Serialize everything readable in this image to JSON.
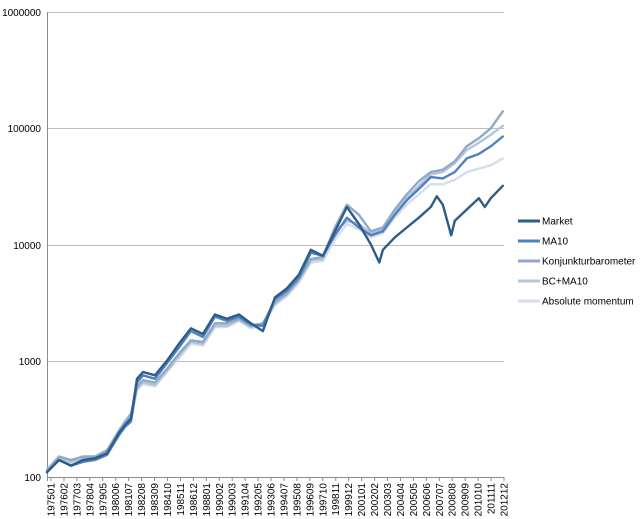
{
  "chart_data": {
    "type": "line",
    "yscale": "log",
    "ylim": [
      100,
      1000000
    ],
    "y_ticks": [
      "100",
      "1000",
      "10000",
      "100000",
      "1000000"
    ],
    "x_tick_labels": [
      "197501",
      "197602",
      "197703",
      "197804",
      "197905",
      "198006",
      "198107",
      "198208",
      "198309",
      "198410",
      "198511",
      "198612",
      "198801",
      "199002",
      "199003",
      "199104",
      "199205",
      "199306",
      "199407",
      "199508",
      "199609",
      "199710",
      "199811",
      "199912",
      "200101",
      "200202",
      "200303",
      "200404",
      "200505",
      "200606",
      "200707",
      "200808",
      "200909",
      "201010",
      "201111",
      "201212"
    ],
    "x_start_year": 1975,
    "x_end_year": 2013.1,
    "legend_position": "right",
    "grid": "horizontal",
    "series": [
      {
        "name": "Market",
        "color": "#2E5C88",
        "points": [
          [
            1975,
            110
          ],
          [
            1976,
            140
          ],
          [
            1977,
            125
          ],
          [
            1978,
            140
          ],
          [
            1979,
            145
          ],
          [
            1980,
            160
          ],
          [
            1981,
            240
          ],
          [
            1981.5,
            280
          ],
          [
            1982,
            320
          ],
          [
            1982.5,
            700
          ],
          [
            1983,
            800
          ],
          [
            1984,
            750
          ],
          [
            1985,
            1000
          ],
          [
            1986,
            1400
          ],
          [
            1987,
            1900
          ],
          [
            1988,
            1700
          ],
          [
            1989,
            2500
          ],
          [
            1990,
            2300
          ],
          [
            1991,
            2500
          ],
          [
            1992,
            2100
          ],
          [
            1993,
            1800
          ],
          [
            1994,
            3500
          ],
          [
            1995,
            4200
          ],
          [
            1996,
            5500
          ],
          [
            1997,
            9000
          ],
          [
            1998,
            8000
          ],
          [
            1999,
            13000
          ],
          [
            2000,
            21000
          ],
          [
            2001,
            15000
          ],
          [
            2002,
            10000
          ],
          [
            2002.7,
            7000
          ],
          [
            2003,
            9000
          ],
          [
            2004,
            11500
          ],
          [
            2005,
            14000
          ],
          [
            2006,
            17000
          ],
          [
            2007,
            21000
          ],
          [
            2007.5,
            26000
          ],
          [
            2008,
            22000
          ],
          [
            2008.7,
            12000
          ],
          [
            2009,
            16000
          ],
          [
            2010,
            20000
          ],
          [
            2011,
            25000
          ],
          [
            2011.5,
            21000
          ],
          [
            2012,
            25000
          ],
          [
            2013,
            32000
          ]
        ]
      },
      {
        "name": "MA10",
        "color": "#4F81BD",
        "points": [
          [
            1975,
            110
          ],
          [
            1976,
            140
          ],
          [
            1977,
            125
          ],
          [
            1978,
            135
          ],
          [
            1979,
            140
          ],
          [
            1980,
            155
          ],
          [
            1981,
            230
          ],
          [
            1981.5,
            270
          ],
          [
            1982,
            300
          ],
          [
            1982.5,
            650
          ],
          [
            1983,
            750
          ],
          [
            1984,
            700
          ],
          [
            1985,
            950
          ],
          [
            1986,
            1300
          ],
          [
            1987,
            1800
          ],
          [
            1988,
            1600
          ],
          [
            1989,
            2400
          ],
          [
            1990,
            2200
          ],
          [
            1991,
            2400
          ],
          [
            1992,
            2050
          ],
          [
            1993,
            2000
          ],
          [
            1994,
            3400
          ],
          [
            1995,
            4000
          ],
          [
            1996,
            5200
          ],
          [
            1997,
            8500
          ],
          [
            1998,
            8000
          ],
          [
            1999,
            12000
          ],
          [
            2000,
            17000
          ],
          [
            2001,
            14000
          ],
          [
            2002,
            12000
          ],
          [
            2003,
            13000
          ],
          [
            2004,
            18000
          ],
          [
            2005,
            24000
          ],
          [
            2006,
            30000
          ],
          [
            2007,
            38000
          ],
          [
            2008,
            37000
          ],
          [
            2009,
            42000
          ],
          [
            2010,
            55000
          ],
          [
            2011,
            60000
          ],
          [
            2012,
            70000
          ],
          [
            2013,
            85000
          ]
        ]
      },
      {
        "name": "Konjunkturbarometer",
        "color": "#8FA9C9",
        "points": [
          [
            1975,
            115
          ],
          [
            1976,
            150
          ],
          [
            1977,
            140
          ],
          [
            1978,
            150
          ],
          [
            1979,
            150
          ],
          [
            1980,
            170
          ],
          [
            1981,
            250
          ],
          [
            1981.5,
            300
          ],
          [
            1982,
            350
          ],
          [
            1982.5,
            600
          ],
          [
            1983,
            680
          ],
          [
            1984,
            650
          ],
          [
            1985,
            850
          ],
          [
            1986,
            1150
          ],
          [
            1987,
            1500
          ],
          [
            1988,
            1450
          ],
          [
            1989,
            2100
          ],
          [
            1990,
            2100
          ],
          [
            1991,
            2300
          ],
          [
            1992,
            2000
          ],
          [
            1993,
            2100
          ],
          [
            1994,
            3200
          ],
          [
            1995,
            3800
          ],
          [
            1996,
            5000
          ],
          [
            1997,
            7500
          ],
          [
            1998,
            7800
          ],
          [
            1999,
            14000
          ],
          [
            2000,
            22000
          ],
          [
            2001,
            18000
          ],
          [
            2002,
            13000
          ],
          [
            2003,
            14000
          ],
          [
            2004,
            20000
          ],
          [
            2005,
            27000
          ],
          [
            2006,
            35000
          ],
          [
            2007,
            42000
          ],
          [
            2008,
            44000
          ],
          [
            2009,
            52000
          ],
          [
            2010,
            70000
          ],
          [
            2011,
            82000
          ],
          [
            2012,
            100000
          ],
          [
            2013,
            140000
          ]
        ]
      },
      {
        "name": "BC+MA10",
        "color": "#B4C4DA",
        "points": [
          [
            1975,
            112
          ],
          [
            1976,
            145
          ],
          [
            1977,
            135
          ],
          [
            1978,
            145
          ],
          [
            1979,
            148
          ],
          [
            1980,
            165
          ],
          [
            1981,
            240
          ],
          [
            1981.5,
            290
          ],
          [
            1982,
            330
          ],
          [
            1982.5,
            580
          ],
          [
            1983,
            650
          ],
          [
            1984,
            620
          ],
          [
            1985,
            820
          ],
          [
            1986,
            1100
          ],
          [
            1987,
            1450
          ],
          [
            1988,
            1400
          ],
          [
            1989,
            2000
          ],
          [
            1990,
            2000
          ],
          [
            1991,
            2250
          ],
          [
            1992,
            1950
          ],
          [
            1993,
            2050
          ],
          [
            1994,
            3100
          ],
          [
            1995,
            3700
          ],
          [
            1996,
            4900
          ],
          [
            1997,
            7300
          ],
          [
            1998,
            7500
          ],
          [
            1999,
            13000
          ],
          [
            2000,
            16000
          ],
          [
            2001,
            15000
          ],
          [
            2002,
            12500
          ],
          [
            2003,
            13500
          ],
          [
            2004,
            19000
          ],
          [
            2005,
            25000
          ],
          [
            2006,
            32000
          ],
          [
            2007,
            40000
          ],
          [
            2008,
            42000
          ],
          [
            2009,
            50000
          ],
          [
            2010,
            65000
          ],
          [
            2011,
            75000
          ],
          [
            2012,
            88000
          ],
          [
            2013,
            105000
          ]
        ]
      },
      {
        "name": "Absolute momentum",
        "color": "#D5DEEA",
        "points": [
          [
            1975,
            110
          ],
          [
            1976,
            142
          ],
          [
            1977,
            130
          ],
          [
            1978,
            140
          ],
          [
            1979,
            143
          ],
          [
            1980,
            160
          ],
          [
            1981,
            225
          ],
          [
            1981.5,
            270
          ],
          [
            1982,
            310
          ],
          [
            1982.5,
            560
          ],
          [
            1983,
            630
          ],
          [
            1984,
            600
          ],
          [
            1985,
            800
          ],
          [
            1986,
            1050
          ],
          [
            1987,
            1400
          ],
          [
            1988,
            1350
          ],
          [
            1989,
            1950
          ],
          [
            1990,
            1950
          ],
          [
            1991,
            2200
          ],
          [
            1992,
            1900
          ],
          [
            1993,
            2000
          ],
          [
            1994,
            3000
          ],
          [
            1995,
            3600
          ],
          [
            1996,
            4700
          ],
          [
            1997,
            7000
          ],
          [
            1998,
            7200
          ],
          [
            1999,
            11000
          ],
          [
            2000,
            15000
          ],
          [
            2001,
            13500
          ],
          [
            2002,
            11500
          ],
          [
            2003,
            12500
          ],
          [
            2004,
            17000
          ],
          [
            2005,
            22000
          ],
          [
            2006,
            27000
          ],
          [
            2007,
            33000
          ],
          [
            2008,
            33000
          ],
          [
            2009,
            36000
          ],
          [
            2010,
            42000
          ],
          [
            2011,
            45000
          ],
          [
            2012,
            48000
          ],
          [
            2013,
            55000
          ]
        ]
      }
    ]
  }
}
